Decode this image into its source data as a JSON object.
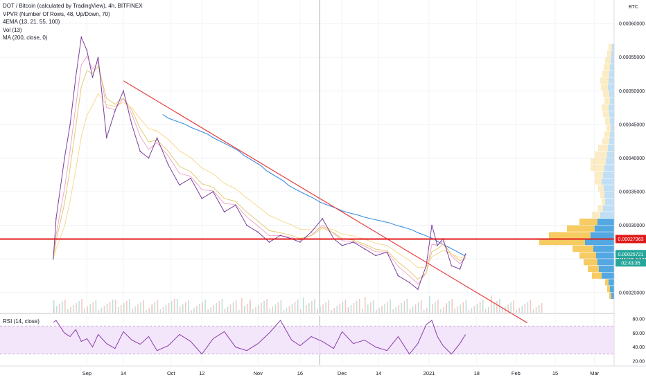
{
  "legend": {
    "symbol": "DOT / Bitcoin (calculated by TradingView), 4h, BITFINEX",
    "vpvr": "VPVR (Number Of Rows, 48, Up/Down, 70)",
    "ema": "4EMA (13, 21, 55, 100)",
    "vol": "Vol (13)",
    "ma": "MA (200, close, 0)",
    "rsi": "RSI (14, close)"
  },
  "colors": {
    "price": "#7b3fa0",
    "ema13": "#f0a8c8",
    "ema21": "#e0cc70",
    "ema55": "#f8d890",
    "ma200": "#3a8ee0",
    "trendline": "#e84040",
    "hline": "#e01818",
    "vp_up": "#4aa3e0",
    "vp_down": "#f5c85a",
    "rsi": "#8a3aa8",
    "rsi_band": "#f0e0fa"
  },
  "price_axis": {
    "unit": "BTC",
    "ticks": [
      "0.00060000",
      "0.00055000",
      "0.00050000",
      "0.00045000",
      "0.00040000",
      "0.00035000",
      "0.00030000",
      "0.00025000",
      "0.00020000"
    ],
    "highlight_level": "0.00027963",
    "current_price": "0.00025721",
    "countdown": "02:43:35"
  },
  "rsi_axis": {
    "ticks": [
      "80.00",
      "60.00",
      "40.00",
      "20.00"
    ]
  },
  "time_axis": {
    "ticks": [
      "Sep",
      "14",
      "Oct",
      "12",
      "Nov",
      "16",
      "Dec",
      "14",
      "2021",
      "18",
      "Feb",
      "15",
      "Mar"
    ]
  },
  "chart_data": {
    "type": "line",
    "title": "DOT / Bitcoin (calculated by TradingView), 4h, BITFINEX",
    "xlabel": "",
    "ylabel": "BTC",
    "ylim": [
      0.00017,
      0.00063
    ],
    "x": [
      "2020-08-20",
      "2020-08-21",
      "2020-08-24",
      "2020-08-26",
      "2020-08-28",
      "2020-08-30",
      "2020-09-01",
      "2020-09-03",
      "2020-09-05",
      "2020-09-08",
      "2020-09-11",
      "2020-09-14",
      "2020-09-17",
      "2020-09-20",
      "2020-09-23",
      "2020-09-26",
      "2020-09-30",
      "2020-10-04",
      "2020-10-08",
      "2020-10-12",
      "2020-10-16",
      "2020-10-20",
      "2020-10-24",
      "2020-10-28",
      "2020-11-01",
      "2020-11-05",
      "2020-11-09",
      "2020-11-13",
      "2020-11-16",
      "2020-11-20",
      "2020-11-24",
      "2020-11-28",
      "2020-12-01",
      "2020-12-05",
      "2020-12-09",
      "2020-12-13",
      "2020-12-17",
      "2020-12-21",
      "2020-12-25",
      "2020-12-28",
      "2020-12-31",
      "2021-01-02",
      "2021-01-04",
      "2021-01-06",
      "2021-01-09",
      "2021-01-12",
      "2021-01-14"
    ],
    "series": [
      {
        "values": [
          0.00025,
          0.00031,
          0.0004,
          0.00045,
          0.00052,
          0.00058,
          0.00056,
          0.00052,
          0.00055,
          0.00043,
          0.00047,
          0.0005,
          0.00045,
          0.00041,
          0.0004,
          0.00043,
          0.00039,
          0.00036,
          0.00037,
          0.00034,
          0.00035,
          0.00032,
          0.00033,
          0.0003,
          0.00029,
          0.000275,
          0.000285,
          0.00028,
          0.000275,
          0.00029,
          0.00031,
          0.00028,
          0.00027,
          0.000275,
          0.000265,
          0.000255,
          0.00026,
          0.000225,
          0.000215,
          0.000205,
          0.00024,
          0.0003,
          0.00027,
          0.00028,
          0.00024,
          0.000235,
          0.00025721
        ]
      }
    ],
    "ema_series_shown": true,
    "ma200_range": [
      0.000465,
      0.00025
    ],
    "trendline": {
      "from": [
        "2020-09-14",
        0.000515
      ],
      "to": [
        "2021-02-05",
        0.000155
      ]
    },
    "horizontal_level": 0.00027963,
    "volume_profile": {
      "rows": [
        {
          "price": 0.000565,
          "up": 3,
          "down": 5
        },
        {
          "price": 0.000555,
          "up": 4,
          "down": 6
        },
        {
          "price": 0.000545,
          "up": 5,
          "down": 8
        },
        {
          "price": 0.000535,
          "up": 6,
          "down": 9
        },
        {
          "price": 0.000525,
          "up": 7,
          "down": 10
        },
        {
          "price": 0.000515,
          "up": 8,
          "down": 12
        },
        {
          "price": 0.000505,
          "up": 9,
          "down": 10
        },
        {
          "price": 0.000495,
          "up": 7,
          "down": 9
        },
        {
          "price": 0.000485,
          "up": 6,
          "down": 8
        },
        {
          "price": 0.000475,
          "up": 8,
          "down": 10
        },
        {
          "price": 0.000465,
          "up": 7,
          "down": 9
        },
        {
          "price": 0.000455,
          "up": 6,
          "down": 7
        },
        {
          "price": 0.000445,
          "up": 5,
          "down": 6
        },
        {
          "price": 0.000435,
          "up": 6,
          "down": 8
        },
        {
          "price": 0.000425,
          "up": 7,
          "down": 10
        },
        {
          "price": 0.000415,
          "up": 9,
          "down": 14
        },
        {
          "price": 0.000405,
          "up": 10,
          "down": 18
        },
        {
          "price": 0.000395,
          "up": 12,
          "down": 22
        },
        {
          "price": 0.000385,
          "up": 14,
          "down": 20
        },
        {
          "price": 0.000375,
          "up": 16,
          "down": 12
        },
        {
          "price": 0.000365,
          "up": 18,
          "down": 10
        },
        {
          "price": 0.000355,
          "up": 15,
          "down": 8
        },
        {
          "price": 0.000345,
          "up": 14,
          "down": 6
        },
        {
          "price": 0.000335,
          "up": 13,
          "down": 5
        },
        {
          "price": 0.000325,
          "up": 16,
          "down": 8
        },
        {
          "price": 0.000315,
          "up": 20,
          "down": 12
        },
        {
          "price": 0.000305,
          "up": 24,
          "down": 26
        },
        {
          "price": 0.000295,
          "up": 28,
          "down": 40
        },
        {
          "price": 0.000285,
          "up": 34,
          "down": 60
        },
        {
          "price": 0.000275,
          "up": 42,
          "down": 66
        },
        {
          "price": 0.000265,
          "up": 30,
          "down": 30
        },
        {
          "price": 0.000255,
          "up": 26,
          "down": 24
        },
        {
          "price": 0.000245,
          "up": 24,
          "down": 20
        },
        {
          "price": 0.000235,
          "up": 22,
          "down": 16
        },
        {
          "price": 0.000225,
          "up": 18,
          "down": 14
        },
        {
          "price": 0.000215,
          "up": 8,
          "down": 5
        },
        {
          "price": 0.000205,
          "up": 6,
          "down": 4
        },
        {
          "price": 0.000195,
          "up": 4,
          "down": 3
        }
      ]
    },
    "rsi": {
      "ylim": [
        15,
        85
      ],
      "bands": [
        70,
        30
      ],
      "values": [
        75,
        78,
        60,
        55,
        65,
        48,
        52,
        40,
        58,
        45,
        38,
        62,
        50,
        44,
        55,
        35,
        42,
        58,
        48,
        30,
        52,
        62,
        40,
        35,
        45,
        60,
        78,
        50,
        42,
        55,
        48,
        38,
        62,
        45,
        50,
        40,
        35,
        55,
        30,
        45,
        72,
        78,
        55,
        42,
        30,
        45,
        58
      ]
    }
  }
}
